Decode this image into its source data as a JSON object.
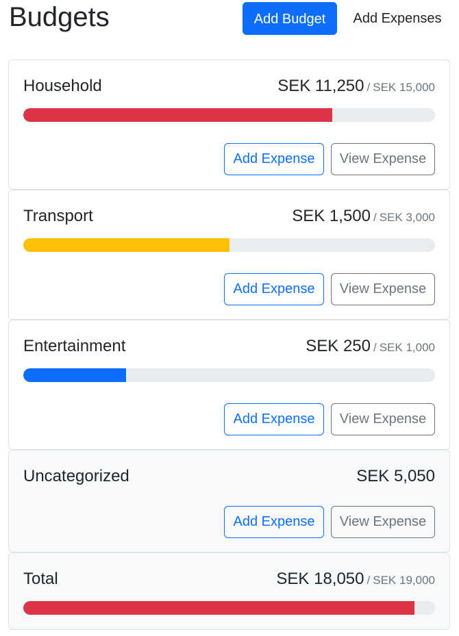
{
  "header": {
    "title": "Budgets",
    "add_budget_label": "Add Budget",
    "add_expenses_label": "Add Expenses"
  },
  "budgets": [
    {
      "name": "Household",
      "amount": "SEK 11,250",
      "separator": "/",
      "max": "SEK 15,000",
      "progress": 0.75,
      "color": "#dc3545",
      "add_label": "Add Expense",
      "view_label": "View Expense"
    },
    {
      "name": "Transport",
      "amount": "SEK 1,500",
      "separator": "/",
      "max": "SEK 3,000",
      "progress": 0.5,
      "color": "#ffc107",
      "add_label": "Add Expense",
      "view_label": "View Expense"
    },
    {
      "name": "Entertainment",
      "amount": "SEK 250",
      "separator": "/",
      "max": "SEK 1,000",
      "progress": 0.25,
      "color": "#0d6efd",
      "add_label": "Add Expense",
      "view_label": "View Expense"
    }
  ],
  "uncategorized": {
    "name": "Uncategorized",
    "amount": "SEK 5,050",
    "add_label": "Add Expense",
    "view_label": "View Expense"
  },
  "total": {
    "name": "Total",
    "amount": "SEK 18,050",
    "separator": "/",
    "max": "SEK 19,000",
    "progress": 0.95,
    "color": "#dc3545"
  }
}
